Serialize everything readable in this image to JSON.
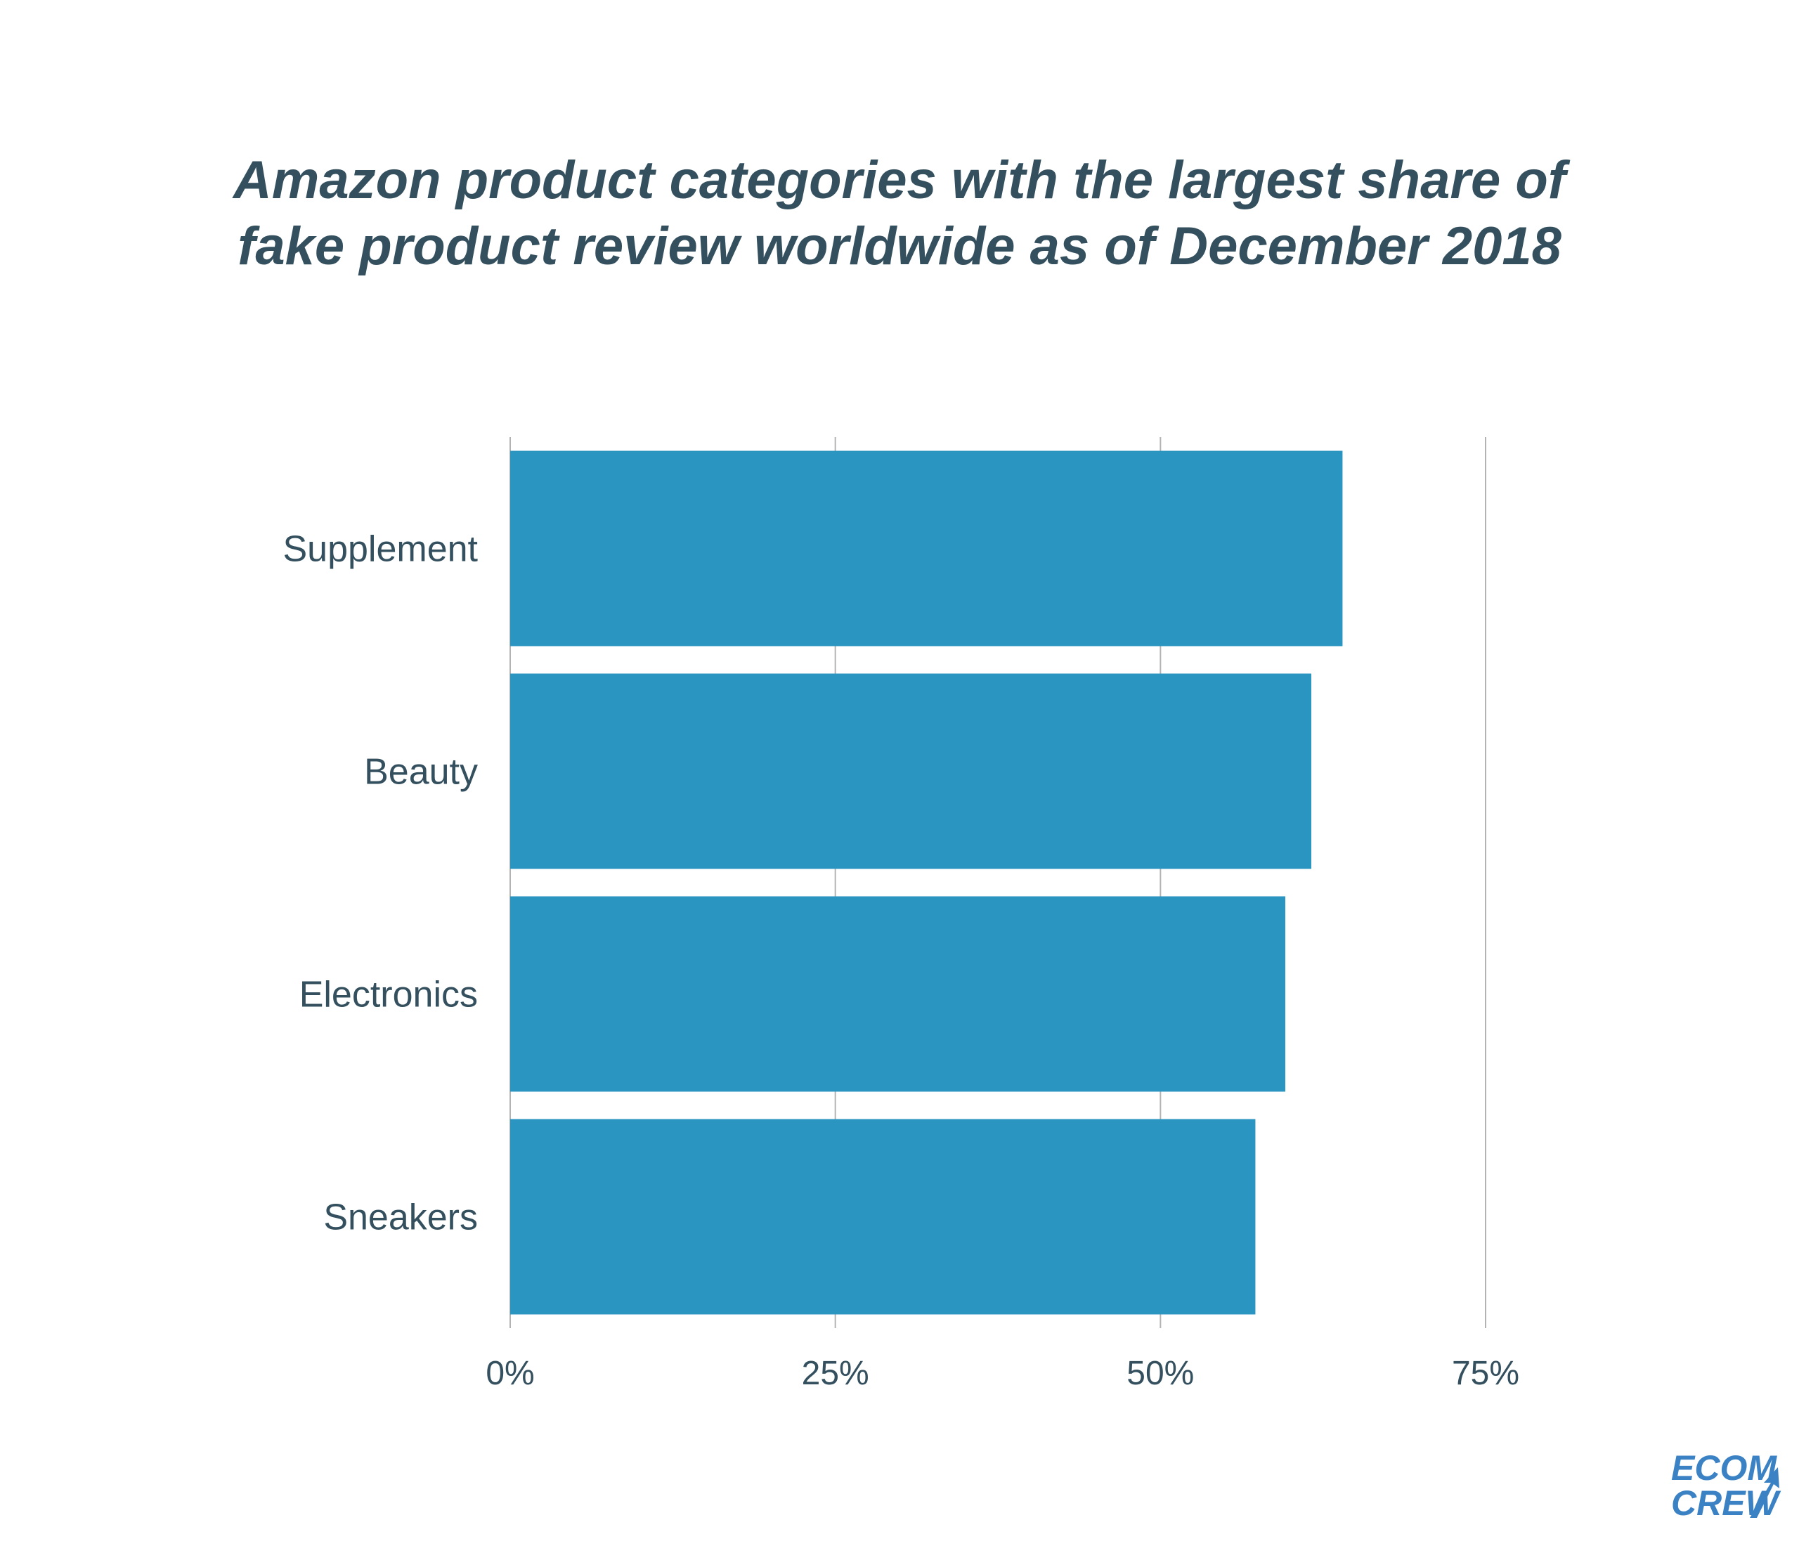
{
  "chart_data": {
    "type": "bar",
    "orientation": "horizontal",
    "title": {
      "line1": "Amazon product categories with the largest share of",
      "line2": "fake product review worldwide as of December 2018"
    },
    "categories": [
      "Supplement",
      "Beauty",
      "Electronics",
      "Sneakers"
    ],
    "values": [
      64,
      61.6,
      59.6,
      57.3
    ],
    "unit": "%",
    "xlim": [
      0,
      75
    ],
    "xticks": [
      "0%",
      "25%",
      "50%",
      "75%"
    ],
    "xtick_values": [
      0,
      25,
      50,
      75
    ],
    "grid": true,
    "legend": "none",
    "bar_color": "#2b95c2",
    "text_color": "#34505f",
    "grid_color": "#b3b3b3"
  },
  "logo": {
    "line1": "ECOM",
    "line2": "CREW",
    "color": "#3b82c4"
  }
}
